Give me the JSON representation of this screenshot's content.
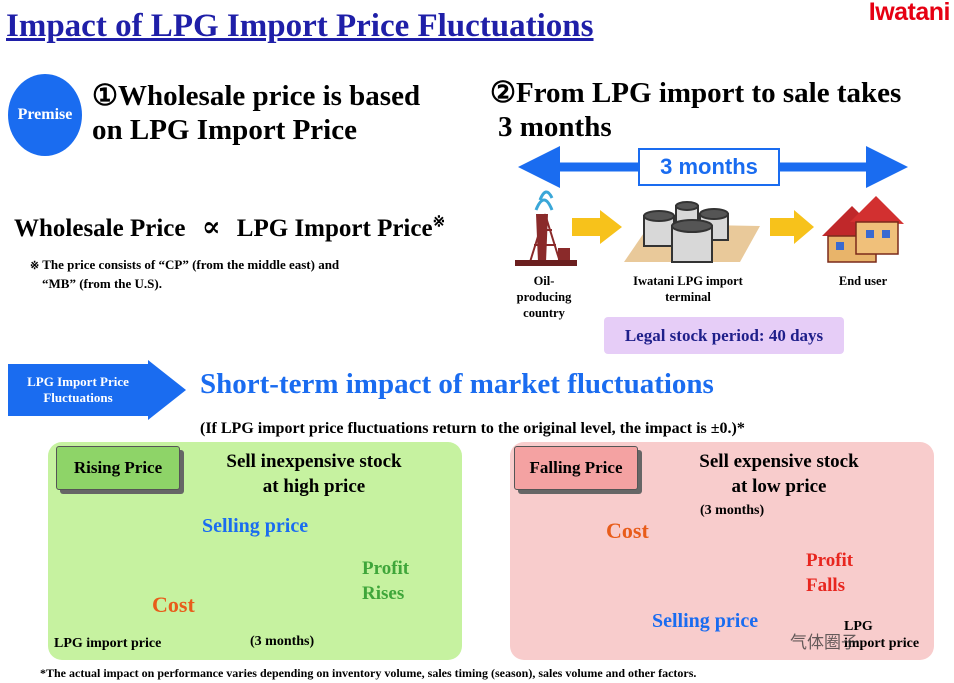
{
  "header": {
    "title": "Impact of LPG Import Price Fluctuations",
    "logo": "Iwatani"
  },
  "premise": {
    "badge": "Premise",
    "point1_line1": "①Wholesale price is based",
    "point1_line2": "on LPG Import  Price",
    "point2_line1": "②From LPG import to sale takes",
    "point2_line2": "3 months"
  },
  "supply_chain": {
    "duration_label": "3  months",
    "stage1_line1": "Oil-",
    "stage1_line2": "producing",
    "stage1_line3": "country",
    "stage2_line1": "Iwatani LPG import",
    "stage2_line2": "terminal",
    "stage3": "End user",
    "legal_stock": "Legal stock period: 40 days"
  },
  "formula": {
    "left": "Wholesale Price",
    "symbol": "∝",
    "right": "LPG Import Price",
    "mark": "※",
    "note_line1": "The price consists of  “CP” (from the middle east) and",
    "note_line2": "“MB” (from the U.S)."
  },
  "section": {
    "badge_line1": "LPG Import Price",
    "badge_line2": "Fluctuations",
    "heading": "Short-term impact of market fluctuations",
    "subnote": "(If LPG import price fluctuations return to the original level, the impact is ±0.)*"
  },
  "rising": {
    "tag": "Rising Price",
    "headline_line1": "Sell inexpensive stock",
    "headline_line2": "at high price",
    "selling": "Selling price",
    "cost": "Cost",
    "profit_line1": "Profit",
    "profit_line2": "Rises",
    "lpg_label": "LPG import price",
    "months": "(3 months)"
  },
  "falling": {
    "tag": "Falling Price",
    "headline_line1": "Sell expensive stock",
    "headline_line2": "at low price",
    "months": "(3 months)",
    "cost": "Cost",
    "profit_line1": "Profit",
    "profit_line2": "Falls",
    "selling": "Selling price",
    "lpg_line1": "LPG",
    "lpg_line2": "import price"
  },
  "footnote": "*The actual impact on performance varies depending on inventory volume, sales timing (season), sales volume and other factors.",
  "watermark": "气体圈子",
  "colors": {
    "title_blue": "#1f1fa8",
    "accent_blue": "#1a6cf0",
    "brand_red": "#e60012",
    "green_panel": "#c6f2a0",
    "pink_panel": "#f8cccc",
    "orange": "#e85c1a"
  }
}
